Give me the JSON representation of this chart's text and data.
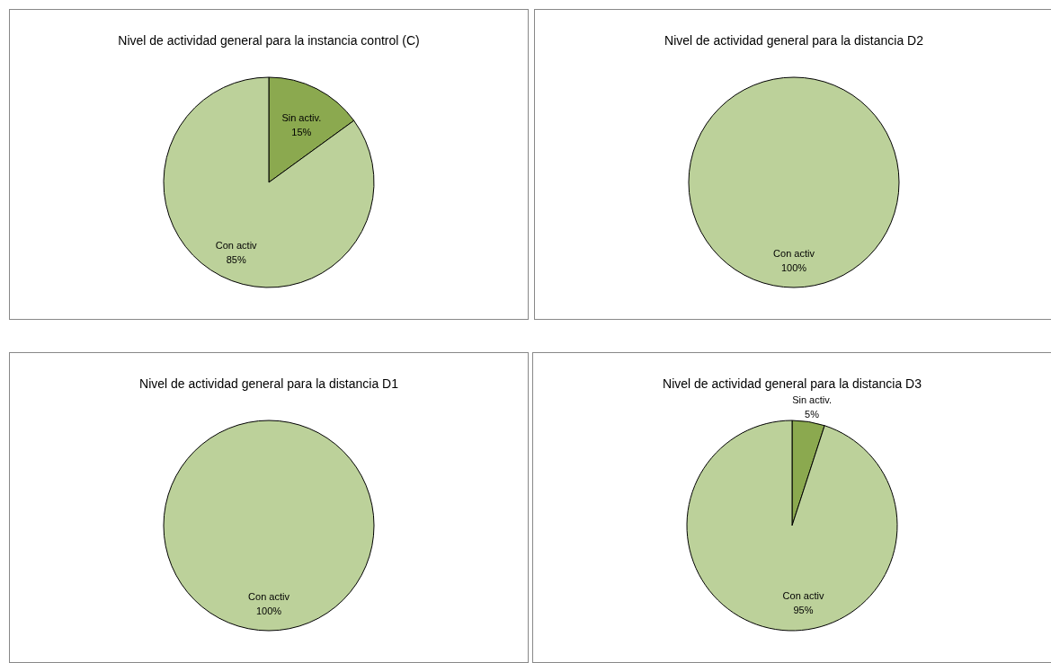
{
  "chart_data": [
    {
      "type": "pie",
      "title": "Nivel de actividad general para la instancia control (C)",
      "categories": [
        "Sin activ.",
        "Con activ"
      ],
      "values": [
        15,
        85
      ],
      "value_labels": [
        "15%",
        "85%"
      ],
      "colors": [
        "#8ba94f",
        "#bcd19a"
      ]
    },
    {
      "type": "pie",
      "title": "Nivel de actividad general para la distancia D2",
      "categories": [
        "Con activ"
      ],
      "values": [
        100
      ],
      "value_labels": [
        "100%"
      ],
      "colors": [
        "#bcd19a"
      ]
    },
    {
      "type": "pie",
      "title": "Nivel de actividad general para la distancia D1",
      "categories": [
        "Con activ"
      ],
      "values": [
        100
      ],
      "value_labels": [
        "100%"
      ],
      "colors": [
        "#bcd19a"
      ]
    },
    {
      "type": "pie",
      "title": "Nivel de actividad general para la distancia D3",
      "categories": [
        "Sin activ.",
        "Con activ"
      ],
      "values": [
        5,
        95
      ],
      "value_labels": [
        "5%",
        "95%"
      ],
      "colors": [
        "#8ba94f",
        "#bcd19a"
      ]
    }
  ]
}
